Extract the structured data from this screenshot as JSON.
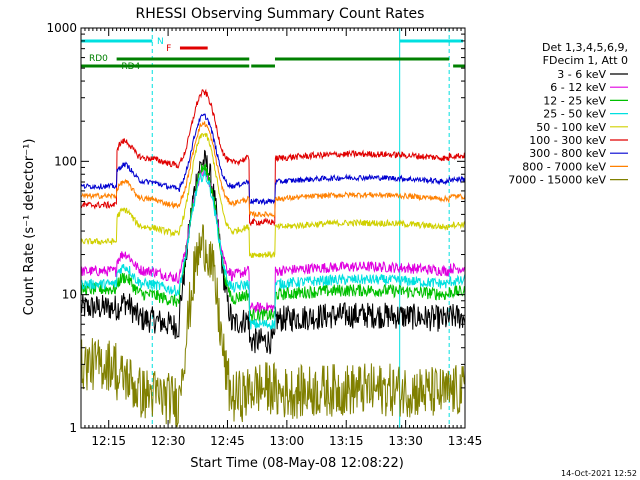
{
  "chart_data": {
    "type": "line",
    "title": "RHESSI Observing Summary Count Rates",
    "xlabel": "Start Time (08-May-08 12:08:22)",
    "ylabel": "Count Rate (s⁻¹ detector⁻¹)",
    "yscale": "log",
    "ylim": [
      1,
      1000
    ],
    "xlim_min": [
      0,
      97
    ],
    "x_ticks": [
      {
        "min": 7,
        "label": "12:15"
      },
      {
        "min": 22,
        "label": "12:30"
      },
      {
        "min": 37,
        "label": "12:45"
      },
      {
        "min": 52,
        "label": "13:00"
      },
      {
        "min": 67,
        "label": "13:15"
      },
      {
        "min": 82,
        "label": "13:30"
      },
      {
        "min": 97,
        "label": "13:45"
      }
    ],
    "y_ticks": [
      {
        "value": 1,
        "label": "1"
      },
      {
        "value": 10,
        "label": "10"
      },
      {
        "value": 100,
        "label": "100"
      },
      {
        "value": 1000,
        "label": "1000"
      }
    ],
    "legend_header": [
      "Det 1,3,4,5,6,9,",
      "FDecim 1, Att 0"
    ],
    "series": [
      {
        "name": "3 - 6 keV",
        "color": "#000000",
        "base": 6.5,
        "pre": 8,
        "peak": 100,
        "gap": 4.5,
        "noise": 0.25
      },
      {
        "name": "6 - 12 keV",
        "color": "#e000e0",
        "base": 15,
        "pre": 15,
        "peak": 85,
        "gap": 8,
        "noise": 0.1
      },
      {
        "name": "12 - 25 keV",
        "color": "#00c000",
        "base": 10,
        "pre": 11,
        "peak": 90,
        "gap": 7,
        "noise": 0.12
      },
      {
        "name": "25 - 50 keV",
        "color": "#00e0e0",
        "base": 12,
        "pre": 12,
        "peak": 80,
        "gap": 6,
        "noise": 0.1
      },
      {
        "name": "50 - 100 keV",
        "color": "#d0d000",
        "base": 32,
        "pre": 25,
        "peak": 165,
        "gap": 20,
        "noise": 0.06
      },
      {
        "name": "100 - 300 keV",
        "color": "#e00000",
        "base": 105,
        "pre": 47,
        "peak": 345,
        "gap": 35,
        "noise": 0.06
      },
      {
        "name": "300 - 800 keV",
        "color": "#0000d0",
        "base": 70,
        "pre": 65,
        "peak": 230,
        "gap": 50,
        "noise": 0.05
      },
      {
        "name": "800 - 7000 keV",
        "color": "#ff8000",
        "base": 52,
        "pre": 55,
        "peak": 200,
        "gap": 40,
        "noise": 0.05
      },
      {
        "name": "7000 - 15000 keV",
        "color": "#808000",
        "base": 1.8,
        "pre": 3,
        "peak": 24,
        "gap": 2,
        "noise": 0.5
      }
    ],
    "annotations": [
      {
        "label": "N",
        "color": "#00e0e0"
      },
      {
        "label": "F",
        "color": "#e00000"
      },
      {
        "label": "RD0",
        "color": "#008000"
      },
      {
        "label": "RD4",
        "color": "#008000"
      }
    ],
    "timestamp": "14-Oct-2021 12:52"
  }
}
